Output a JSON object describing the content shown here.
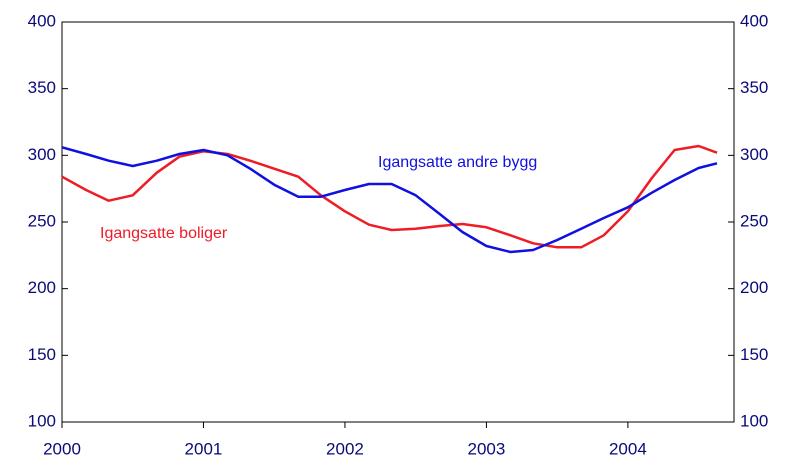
{
  "chart_data": {
    "type": "line",
    "x": [
      2000,
      2000.17,
      2000.33,
      2000.5,
      2000.67,
      2000.83,
      2001,
      2001.17,
      2001.33,
      2001.5,
      2001.67,
      2001.83,
      2002,
      2002.17,
      2002.33,
      2002.5,
      2002.67,
      2002.83,
      2003,
      2003.17,
      2003.33,
      2003.5,
      2003.67,
      2003.83,
      2004,
      2004.17,
      2004.33,
      2004.5,
      2004.63
    ],
    "series": [
      {
        "name": "Igangsatte boliger",
        "color": "#ee1c25",
        "values": [
          284,
          274,
          266,
          270,
          287,
          299,
          303,
          301,
          296,
          290,
          284,
          270,
          258,
          248,
          244,
          245,
          247,
          248.5,
          246,
          240,
          234,
          231,
          231,
          240,
          258,
          283,
          304,
          307,
          302
        ]
      },
      {
        "name": "Igangsatte andre bygg",
        "color": "#1010e0",
        "values": [
          306,
          301,
          296,
          292,
          296,
          301,
          304,
          300,
          290,
          278,
          269,
          269,
          274,
          278.5,
          278.5,
          270,
          256,
          242.5,
          232,
          227.5,
          229,
          236.5,
          245,
          253,
          261,
          272,
          281.5,
          290.5,
          294
        ]
      }
    ],
    "xlim": [
      2000,
      2004.75
    ],
    "xticks": [
      2000,
      2001,
      2002,
      2003,
      2004
    ],
    "ylim": [
      100,
      400
    ],
    "yticks": [
      100,
      150,
      200,
      250,
      300,
      350,
      400
    ],
    "y2lim": [
      100,
      400
    ],
    "y2ticks": [
      100,
      150,
      200,
      250,
      300,
      350,
      400
    ]
  }
}
